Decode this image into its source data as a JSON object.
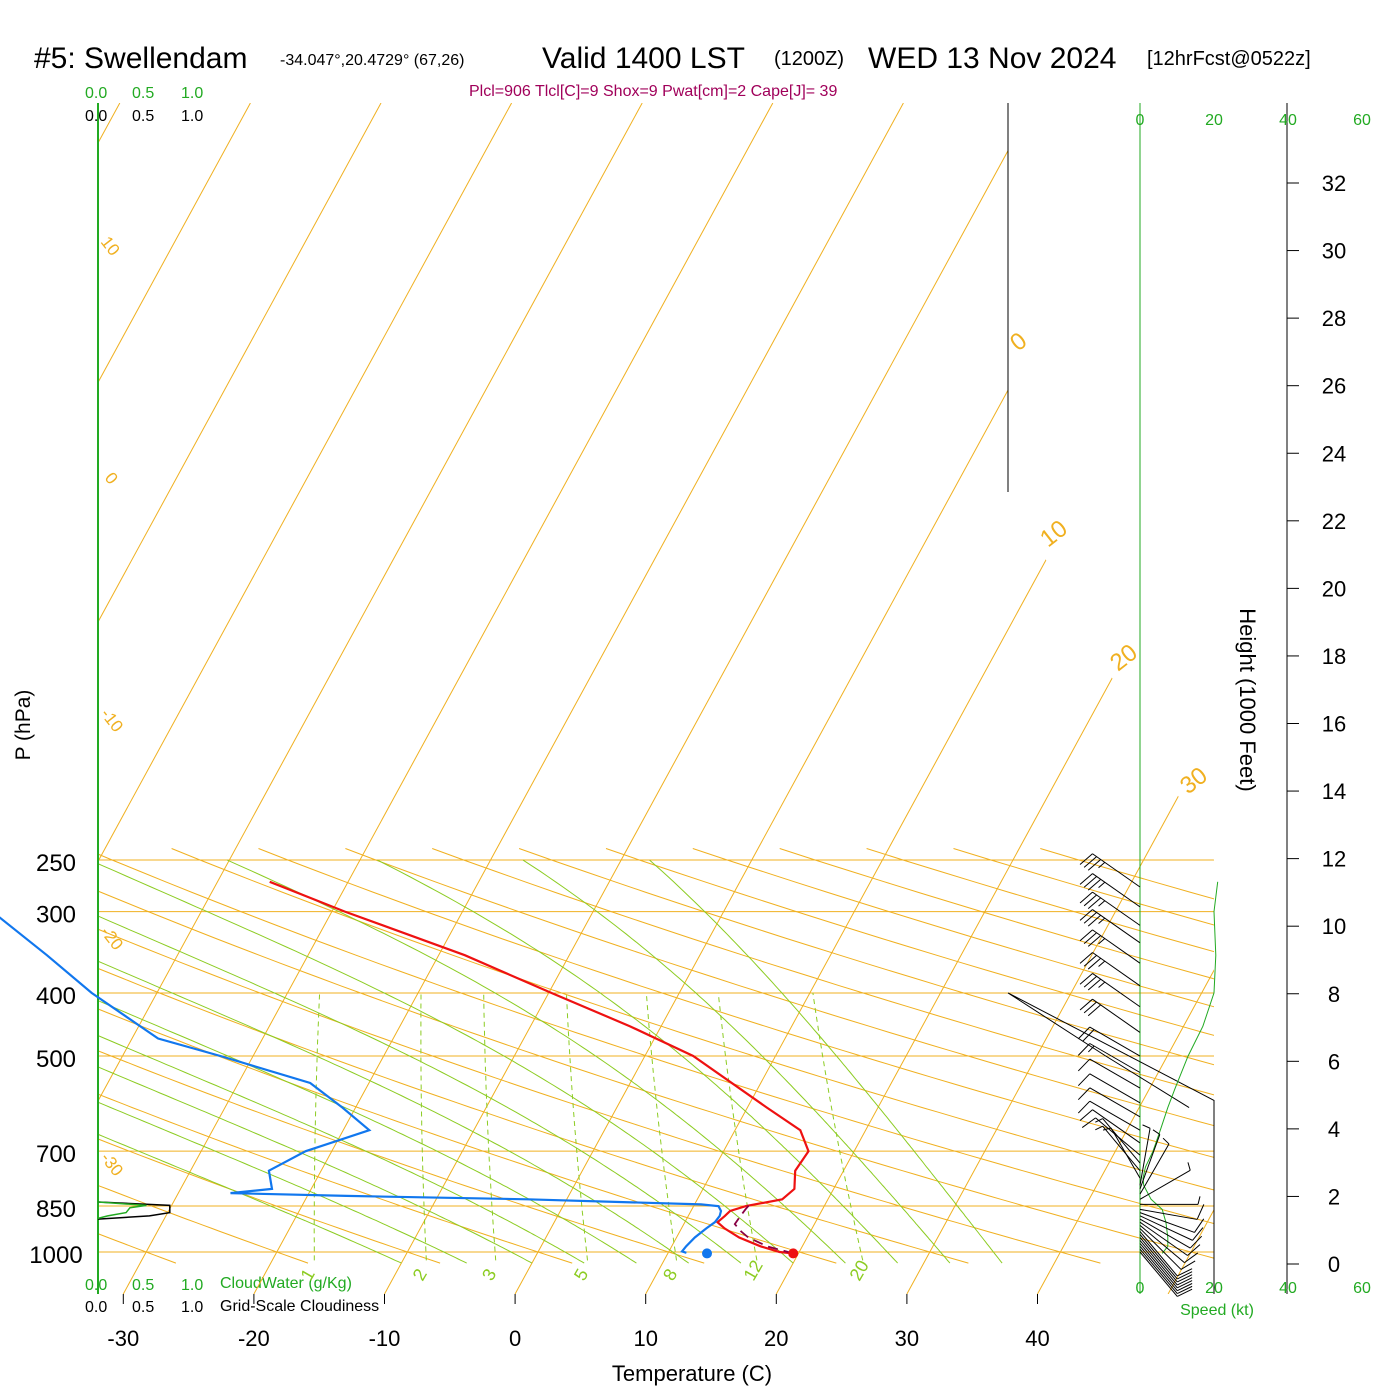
{
  "header": {
    "station": "#5: Swellendam",
    "coords": "-34.047°,20.4729° (67,26)",
    "valid": "Valid 1400 LST",
    "zulu": "(1200Z)",
    "date": "WED 13 Nov 2024",
    "forecast": "[12hrFcst@0522z]",
    "params": "Plcl=906 Tlcl[C]=9 Shox=9 Pwat[cm]=2 Cape[J]= 39"
  },
  "cloud_scale": {
    "ticks": [
      "0.0",
      "0.5",
      "1.0"
    ],
    "cloudwater_label": "CloudWater (g/Kg)",
    "cloudiness_label": "Grid-Scale Cloudiness"
  },
  "colors": {
    "isotherm": "#f0b020",
    "dry_adiabat": "#f0b020",
    "moist_adiabat": "#8ccc22",
    "mixing_ratio": "#8ccc22",
    "temperature": "#ee1111",
    "dewpoint": "#1177ee",
    "parcel": "#880044",
    "speed": "#22aa22",
    "cloudwater": "#22aa22"
  },
  "chart_data": {
    "type": "skew-t",
    "xlabel": "Temperature (C)",
    "ylabel": "P (hPa)",
    "y2label": "Height (1000 Feet)",
    "speed_label": "Speed (kt)",
    "x_ticks": [
      -30,
      -20,
      -10,
      0,
      10,
      20,
      30,
      40
    ],
    "p_ticks": [
      250,
      300,
      400,
      500,
      700,
      850,
      1000
    ],
    "height_ticks_kft": [
      0,
      2,
      4,
      6,
      8,
      10,
      12,
      14,
      16,
      18,
      20,
      22,
      24,
      26,
      28,
      30,
      32
    ],
    "speed_ticks": [
      0,
      20,
      40,
      60
    ],
    "isotherm_labels": [
      -20,
      -10,
      0,
      10,
      20,
      30
    ],
    "dry_adiabat_labels": [
      10,
      0,
      -10,
      -20,
      -30
    ],
    "mixing_ratio_labels": [
      1,
      2,
      3,
      5,
      8,
      12,
      20
    ],
    "temperature": [
      {
        "p": 1005,
        "t": 19.6
      },
      {
        "p": 1000,
        "t": 18.5
      },
      {
        "p": 980,
        "t": 16.8
      },
      {
        "p": 950,
        "t": 14.8
      },
      {
        "p": 920,
        "t": 13.3
      },
      {
        "p": 900,
        "t": 12.5
      },
      {
        "p": 880,
        "t": 12.8
      },
      {
        "p": 865,
        "t": 13.0
      },
      {
        "p": 850,
        "t": 14.0
      },
      {
        "p": 830,
        "t": 16.5
      },
      {
        "p": 800,
        "t": 17.0
      },
      {
        "p": 750,
        "t": 16.3
      },
      {
        "p": 700,
        "t": 16.5
      },
      {
        "p": 650,
        "t": 15.0
      },
      {
        "p": 600,
        "t": 11.5
      },
      {
        "p": 500,
        "t": 3.7
      },
      {
        "p": 450,
        "t": -2.4
      },
      {
        "p": 400,
        "t": -9.8
      },
      {
        "p": 350,
        "t": -18.0
      },
      {
        "p": 300,
        "t": -29.0
      },
      {
        "p": 270,
        "t": -36.0
      }
    ],
    "dewpoint": [
      {
        "p": 1003,
        "t": 11.4
      },
      {
        "p": 998,
        "t": 11.0
      },
      {
        "p": 980,
        "t": 11.1
      },
      {
        "p": 950,
        "t": 11.4
      },
      {
        "p": 920,
        "t": 11.9
      },
      {
        "p": 900,
        "t": 12.3
      },
      {
        "p": 880,
        "t": 12.4
      },
      {
        "p": 865,
        "t": 12.3
      },
      {
        "p": 850,
        "t": 11.9
      },
      {
        "p": 845,
        "t": 10.5
      },
      {
        "p": 830,
        "t": -3.0
      },
      {
        "p": 820,
        "t": -17.0
      },
      {
        "p": 812,
        "t": -26.0
      },
      {
        "p": 800,
        "t": -23.0
      },
      {
        "p": 750,
        "t": -24.0
      },
      {
        "p": 700,
        "t": -22.0
      },
      {
        "p": 650,
        "t": -18.0
      },
      {
        "p": 600,
        "t": -21.0
      },
      {
        "p": 550,
        "t": -24.5
      },
      {
        "p": 500,
        "t": -32.5
      },
      {
        "p": 470,
        "t": -38.0
      },
      {
        "p": 400,
        "t": -45.0
      },
      {
        "p": 350,
        "t": -50.0
      },
      {
        "p": 300,
        "t": -56.0
      },
      {
        "p": 270,
        "t": -61.0
      }
    ],
    "parcel": [
      {
        "p": 1005,
        "t": 19.6
      },
      {
        "p": 980,
        "t": 17.3
      },
      {
        "p": 950,
        "t": 15.5
      },
      {
        "p": 930,
        "t": 14.7
      },
      {
        "p": 906,
        "t": 13.9
      },
      {
        "p": 880,
        "t": 14.0
      },
      {
        "p": 860,
        "t": 14.1
      },
      {
        "p": 848,
        "t": 14.2
      }
    ],
    "surface_temp": {
      "p": 1005,
      "t": 19.6
    },
    "surface_dewpoint": {
      "p": 1005,
      "t": 13.0
    },
    "height_curve": [
      {
        "p": 1005,
        "kft": 0.3
      },
      {
        "p": 950,
        "kft": 2.0
      },
      {
        "p": 850,
        "kft": 5.0
      },
      {
        "p": 700,
        "kft": 10.0
      },
      {
        "p": 600,
        "kft": 13.8
      },
      {
        "p": 500,
        "kft": 18.5
      },
      {
        "p": 400,
        "kft": 24.0
      },
      {
        "p": 300,
        "kft": 30.5
      },
      {
        "p": 250,
        "kft": 34.0
      }
    ],
    "wind_speed_kt": [
      {
        "p": 1005,
        "v": 6
      },
      {
        "p": 980,
        "v": 7.5
      },
      {
        "p": 950,
        "v": 7.5
      },
      {
        "p": 900,
        "v": 7
      },
      {
        "p": 860,
        "v": 6
      },
      {
        "p": 830,
        "v": 3
      },
      {
        "p": 810,
        "v": 2
      },
      {
        "p": 790,
        "v": 1
      },
      {
        "p": 770,
        "v": 0.8
      },
      {
        "p": 740,
        "v": 1.5
      },
      {
        "p": 700,
        "v": 3.5
      },
      {
        "p": 650,
        "v": 5.5
      },
      {
        "p": 600,
        "v": 7.5
      },
      {
        "p": 560,
        "v": 9.5
      },
      {
        "p": 500,
        "v": 13
      },
      {
        "p": 450,
        "v": 17
      },
      {
        "p": 400,
        "v": 20
      },
      {
        "p": 350,
        "v": 20.5
      },
      {
        "p": 300,
        "v": 20
      },
      {
        "p": 270,
        "v": 21
      }
    ],
    "wind_barbs": [
      {
        "p": 1000,
        "dir": 140,
        "spd": 10
      },
      {
        "p": 990,
        "dir": 140,
        "spd": 10
      },
      {
        "p": 980,
        "dir": 140,
        "spd": 10
      },
      {
        "p": 970,
        "dir": 140,
        "spd": 10
      },
      {
        "p": 960,
        "dir": 140,
        "spd": 10
      },
      {
        "p": 950,
        "dir": 140,
        "spd": 10
      },
      {
        "p": 940,
        "dir": 140,
        "spd": 10
      },
      {
        "p": 930,
        "dir": 140,
        "spd": 10
      },
      {
        "p": 920,
        "dir": 135,
        "spd": 10
      },
      {
        "p": 910,
        "dir": 130,
        "spd": 10
      },
      {
        "p": 900,
        "dir": 125,
        "spd": 10
      },
      {
        "p": 890,
        "dir": 120,
        "spd": 10
      },
      {
        "p": 880,
        "dir": 115,
        "spd": 10
      },
      {
        "p": 870,
        "dir": 110,
        "spd": 10
      },
      {
        "p": 860,
        "dir": 100,
        "spd": 10
      },
      {
        "p": 845,
        "dir": 90,
        "spd": 5
      },
      {
        "p": 830,
        "dir": 60,
        "spd": 5
      },
      {
        "p": 815,
        "dir": 30,
        "spd": 5
      },
      {
        "p": 800,
        "dir": 20,
        "spd": 5
      },
      {
        "p": 790,
        "dir": 10,
        "spd": 5
      },
      {
        "p": 770,
        "dir": 330,
        "spd": 5
      },
      {
        "p": 750,
        "dir": 320,
        "spd": 5
      },
      {
        "p": 730,
        "dir": 320,
        "spd": 5
      },
      {
        "p": 710,
        "dir": 310,
        "spd": 10
      },
      {
        "p": 680,
        "dir": 305,
        "spd": 10
      },
      {
        "p": 650,
        "dir": 300,
        "spd": 10
      },
      {
        "p": 620,
        "dir": 300,
        "spd": 10
      },
      {
        "p": 590,
        "dir": 300,
        "spd": 10
      },
      {
        "p": 560,
        "dir": 300,
        "spd": 10
      },
      {
        "p": 530,
        "dir": 300,
        "spd": 15
      },
      {
        "p": 500,
        "dir": 300,
        "spd": 20
      },
      {
        "p": 460,
        "dir": 305,
        "spd": 30
      },
      {
        "p": 420,
        "dir": 305,
        "spd": 35
      },
      {
        "p": 390,
        "dir": 305,
        "spd": 35
      },
      {
        "p": 360,
        "dir": 305,
        "spd": 35
      },
      {
        "p": 335,
        "dir": 305,
        "spd": 35
      },
      {
        "p": 315,
        "dir": 305,
        "spd": 35
      },
      {
        "p": 295,
        "dir": 305,
        "spd": 35
      },
      {
        "p": 275,
        "dir": 305,
        "spd": 35
      }
    ],
    "cloudiness": [
      {
        "p": 838,
        "v": 0.0
      },
      {
        "p": 848,
        "v": 0.74
      },
      {
        "p": 870,
        "v": 0.74
      },
      {
        "p": 880,
        "v": 0.53
      },
      {
        "p": 890,
        "v": 0.0
      }
    ],
    "cloudwater": [
      {
        "p": 838,
        "v": 0.0
      },
      {
        "p": 848,
        "v": 0.5
      },
      {
        "p": 855,
        "v": 0.33
      },
      {
        "p": 870,
        "v": 0.29
      },
      {
        "p": 880,
        "v": 0.1
      },
      {
        "p": 888,
        "v": 0.0
      }
    ]
  }
}
